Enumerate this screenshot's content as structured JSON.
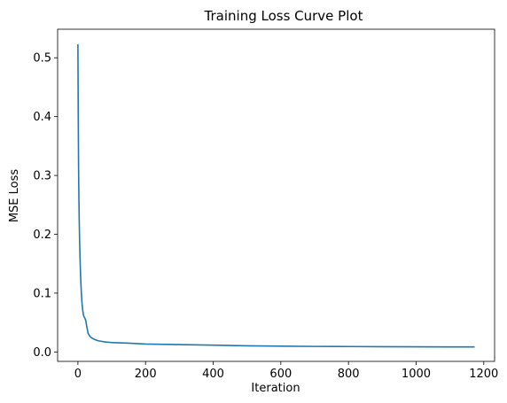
{
  "chart_data": {
    "type": "line",
    "title": "Training Loss Curve Plot",
    "xlabel": "Iteration",
    "ylabel": "MSE Loss",
    "xlim": [
      -60,
      1232
    ],
    "ylim": [
      -0.016,
      0.5485
    ],
    "xticks": [
      0,
      200,
      400,
      600,
      800,
      1000,
      1200
    ],
    "xtick_labels": [
      "0",
      "200",
      "400",
      "600",
      "800",
      "1000",
      "1200"
    ],
    "yticks": [
      0.0,
      0.1,
      0.2,
      0.3,
      0.4,
      0.5
    ],
    "ytick_labels": [
      "0.0",
      "0.1",
      "0.2",
      "0.3",
      "0.4",
      "0.5"
    ],
    "grid": false,
    "series": [
      {
        "color": "#1f77b4",
        "x": [
          0,
          1,
          2,
          3,
          4,
          5,
          6,
          8,
          10,
          12,
          14,
          16,
          18,
          20,
          23,
          26,
          30,
          35,
          40,
          50,
          60,
          80,
          100,
          150,
          200,
          300,
          400,
          500,
          600,
          700,
          800,
          900,
          1000,
          1100,
          1173
        ],
        "y": [
          0.523,
          0.4,
          0.31,
          0.26,
          0.22,
          0.19,
          0.165,
          0.128,
          0.102,
          0.084,
          0.072,
          0.064,
          0.06,
          0.058,
          0.054,
          0.044,
          0.032,
          0.027,
          0.024,
          0.021,
          0.019,
          0.017,
          0.016,
          0.015,
          0.0135,
          0.0125,
          0.0115,
          0.0105,
          0.0098,
          0.0094,
          0.0092,
          0.009,
          0.0087,
          0.0085,
          0.0085
        ]
      }
    ]
  }
}
